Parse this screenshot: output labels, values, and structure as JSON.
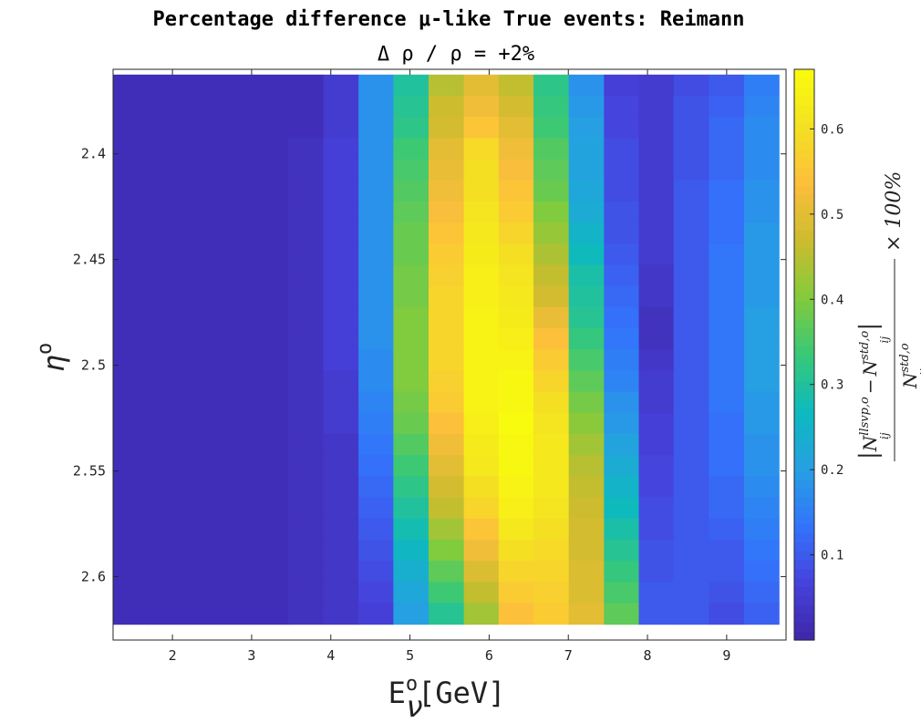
{
  "chart_data": {
    "type": "heatmap",
    "title": "Percentage difference μ-like True events: Reimann",
    "subtitle": "Δ  ρ  /  ρ  =  +2%",
    "xlabel": "E",
    "xlabel_sup": "o",
    "xlabel_sub": "ν",
    "xlabel_unit": "[GeV]",
    "ylabel": "η",
    "ylabel_sup": "o",
    "colorbar_label": "|N_ij^{llsvp,o} − N_ij^{std,o}| / N_ij^{std,o} × 100%",
    "colorbar_label_parts": {
      "abs_open": "|",
      "n1": "N",
      "sub1": "ij",
      "sup1": "llsvp,o",
      "minus": "−",
      "n2": "N",
      "sub2": "ij",
      "sup2": "std,o",
      "abs_close": "|",
      "n3": "N",
      "sub3": "ij",
      "sup3": "std,o",
      "times": "× 100%"
    },
    "colormap": "parula",
    "xlim": [
      1.25,
      9.75
    ],
    "ylim": [
      2.63,
      2.36
    ],
    "x_ticks": [
      2,
      3,
      4,
      5,
      6,
      7,
      8,
      9
    ],
    "x_tick_labels": [
      "2",
      "3",
      "4",
      "5",
      "6",
      "7",
      "8",
      "9"
    ],
    "y_ticks": [
      2.4,
      2.45,
      2.5,
      2.55,
      2.6
    ],
    "y_tick_labels": [
      "2.4",
      "2.45",
      "2.5",
      "2.55",
      "2.6"
    ],
    "color_range": [
      0,
      0.67
    ],
    "colorbar_ticks": [
      0.1,
      0.2,
      0.3,
      0.4,
      0.5,
      0.6
    ],
    "colorbar_tick_labels": [
      "0.1",
      "0.2",
      "0.3",
      "0.4",
      "0.5",
      "0.6"
    ],
    "x_centers": [
      1.47,
      1.91,
      2.36,
      2.8,
      3.24,
      3.68,
      4.13,
      4.57,
      5.01,
      5.46,
      5.9,
      6.34,
      6.78,
      7.23,
      7.67,
      8.11,
      8.55,
      9.0,
      9.44
    ],
    "y_centers": [
      2.3675,
      2.3775,
      2.3875,
      2.3975,
      2.4075,
      2.4175,
      2.4275,
      2.4375,
      2.4475,
      2.4575,
      2.4675,
      2.4775,
      2.4875,
      2.4975,
      2.5075,
      2.5175,
      2.5275,
      2.5375,
      2.5475,
      2.5575,
      2.5675,
      2.5775,
      2.5875,
      2.5975,
      2.6075,
      2.6175
    ],
    "values": [
      [
        0.02,
        0.02,
        0.02,
        0.02,
        0.02,
        0.02,
        0.05,
        0.18,
        0.3,
        0.45,
        0.5,
        0.46,
        0.32,
        0.18,
        0.06,
        0.05,
        0.08,
        0.1,
        0.15
      ],
      [
        0.02,
        0.02,
        0.02,
        0.02,
        0.02,
        0.02,
        0.05,
        0.18,
        0.31,
        0.47,
        0.52,
        0.48,
        0.33,
        0.19,
        0.07,
        0.05,
        0.09,
        0.11,
        0.16
      ],
      [
        0.02,
        0.02,
        0.02,
        0.02,
        0.02,
        0.02,
        0.05,
        0.18,
        0.32,
        0.48,
        0.55,
        0.5,
        0.34,
        0.2,
        0.07,
        0.05,
        0.09,
        0.12,
        0.17
      ],
      [
        0.02,
        0.02,
        0.02,
        0.02,
        0.02,
        0.03,
        0.06,
        0.18,
        0.34,
        0.5,
        0.59,
        0.52,
        0.36,
        0.21,
        0.08,
        0.05,
        0.09,
        0.12,
        0.17
      ],
      [
        0.02,
        0.02,
        0.02,
        0.02,
        0.02,
        0.03,
        0.06,
        0.18,
        0.35,
        0.51,
        0.6,
        0.53,
        0.37,
        0.21,
        0.08,
        0.05,
        0.09,
        0.12,
        0.17
      ],
      [
        0.02,
        0.02,
        0.02,
        0.02,
        0.02,
        0.03,
        0.06,
        0.18,
        0.36,
        0.52,
        0.6,
        0.55,
        0.38,
        0.22,
        0.08,
        0.05,
        0.1,
        0.13,
        0.18
      ],
      [
        0.02,
        0.02,
        0.02,
        0.02,
        0.02,
        0.03,
        0.06,
        0.18,
        0.37,
        0.53,
        0.61,
        0.56,
        0.4,
        0.23,
        0.09,
        0.05,
        0.1,
        0.13,
        0.18
      ],
      [
        0.02,
        0.02,
        0.02,
        0.02,
        0.02,
        0.03,
        0.06,
        0.18,
        0.38,
        0.55,
        0.62,
        0.58,
        0.42,
        0.25,
        0.09,
        0.05,
        0.1,
        0.13,
        0.19
      ],
      [
        0.02,
        0.02,
        0.02,
        0.02,
        0.02,
        0.03,
        0.06,
        0.18,
        0.38,
        0.56,
        0.63,
        0.6,
        0.44,
        0.27,
        0.1,
        0.05,
        0.1,
        0.14,
        0.19
      ],
      [
        0.02,
        0.02,
        0.02,
        0.02,
        0.02,
        0.03,
        0.06,
        0.18,
        0.39,
        0.57,
        0.64,
        0.61,
        0.46,
        0.29,
        0.11,
        0.04,
        0.1,
        0.14,
        0.19
      ],
      [
        0.02,
        0.02,
        0.02,
        0.02,
        0.02,
        0.03,
        0.06,
        0.18,
        0.39,
        0.58,
        0.64,
        0.62,
        0.48,
        0.3,
        0.12,
        0.04,
        0.1,
        0.14,
        0.19
      ],
      [
        0.02,
        0.02,
        0.02,
        0.02,
        0.02,
        0.03,
        0.06,
        0.18,
        0.4,
        0.58,
        0.65,
        0.63,
        0.51,
        0.31,
        0.13,
        0.03,
        0.1,
        0.14,
        0.2
      ],
      [
        0.02,
        0.02,
        0.02,
        0.02,
        0.02,
        0.03,
        0.06,
        0.18,
        0.4,
        0.58,
        0.65,
        0.64,
        0.54,
        0.33,
        0.14,
        0.03,
        0.1,
        0.14,
        0.2
      ],
      [
        0.02,
        0.02,
        0.02,
        0.02,
        0.02,
        0.03,
        0.06,
        0.17,
        0.4,
        0.58,
        0.65,
        0.65,
        0.56,
        0.35,
        0.15,
        0.04,
        0.1,
        0.14,
        0.2
      ],
      [
        0.02,
        0.02,
        0.02,
        0.02,
        0.02,
        0.03,
        0.05,
        0.17,
        0.4,
        0.57,
        0.65,
        0.66,
        0.58,
        0.37,
        0.16,
        0.05,
        0.1,
        0.14,
        0.2
      ],
      [
        0.02,
        0.02,
        0.02,
        0.02,
        0.02,
        0.03,
        0.05,
        0.16,
        0.39,
        0.56,
        0.65,
        0.66,
        0.6,
        0.39,
        0.18,
        0.05,
        0.1,
        0.14,
        0.19
      ],
      [
        0.02,
        0.02,
        0.02,
        0.02,
        0.02,
        0.03,
        0.05,
        0.15,
        0.38,
        0.54,
        0.64,
        0.67,
        0.61,
        0.41,
        0.19,
        0.06,
        0.1,
        0.13,
        0.19
      ],
      [
        0.02,
        0.02,
        0.02,
        0.02,
        0.02,
        0.03,
        0.04,
        0.14,
        0.36,
        0.52,
        0.63,
        0.66,
        0.62,
        0.43,
        0.21,
        0.06,
        0.1,
        0.13,
        0.18
      ],
      [
        0.02,
        0.02,
        0.02,
        0.02,
        0.02,
        0.03,
        0.04,
        0.13,
        0.34,
        0.5,
        0.62,
        0.66,
        0.62,
        0.45,
        0.23,
        0.07,
        0.1,
        0.13,
        0.18
      ],
      [
        0.02,
        0.02,
        0.02,
        0.02,
        0.02,
        0.03,
        0.04,
        0.12,
        0.32,
        0.48,
        0.6,
        0.65,
        0.62,
        0.46,
        0.25,
        0.07,
        0.1,
        0.12,
        0.17
      ],
      [
        0.02,
        0.02,
        0.02,
        0.02,
        0.02,
        0.03,
        0.04,
        0.11,
        0.3,
        0.46,
        0.58,
        0.64,
        0.61,
        0.47,
        0.27,
        0.08,
        0.1,
        0.12,
        0.16
      ],
      [
        0.02,
        0.02,
        0.02,
        0.02,
        0.02,
        0.03,
        0.04,
        0.1,
        0.28,
        0.43,
        0.55,
        0.62,
        0.6,
        0.48,
        0.29,
        0.08,
        0.1,
        0.11,
        0.15
      ],
      [
        0.02,
        0.02,
        0.02,
        0.02,
        0.02,
        0.03,
        0.04,
        0.09,
        0.26,
        0.4,
        0.52,
        0.6,
        0.59,
        0.48,
        0.31,
        0.09,
        0.1,
        0.1,
        0.14
      ],
      [
        0.02,
        0.02,
        0.02,
        0.02,
        0.02,
        0.03,
        0.04,
        0.08,
        0.24,
        0.37,
        0.49,
        0.58,
        0.58,
        0.49,
        0.33,
        0.09,
        0.1,
        0.1,
        0.13
      ],
      [
        0.02,
        0.02,
        0.02,
        0.02,
        0.02,
        0.03,
        0.04,
        0.07,
        0.22,
        0.34,
        0.46,
        0.56,
        0.57,
        0.49,
        0.35,
        0.1,
        0.1,
        0.09,
        0.12
      ],
      [
        0.02,
        0.02,
        0.02,
        0.02,
        0.02,
        0.03,
        0.04,
        0.06,
        0.2,
        0.31,
        0.43,
        0.54,
        0.56,
        0.5,
        0.37,
        0.1,
        0.1,
        0.08,
        0.11
      ]
    ]
  }
}
